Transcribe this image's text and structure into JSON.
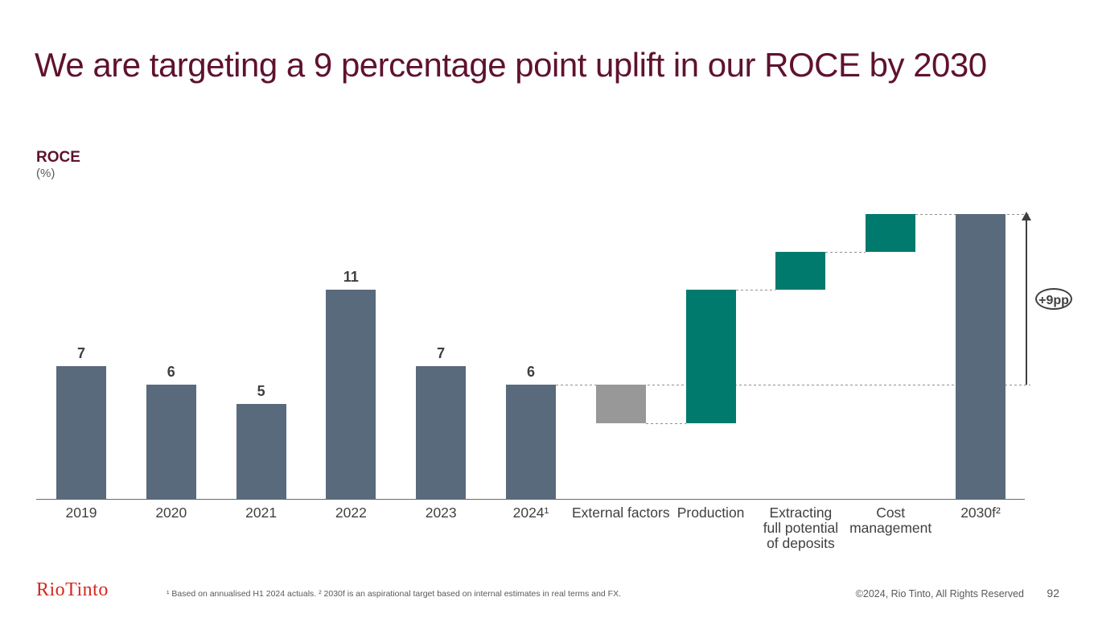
{
  "slide": {
    "title": "We are targeting a 9 percentage point uplift in our ROCE by 2030",
    "footer": {
      "logo_text": "RioTinto",
      "footnote": "¹ Based on annualised H1 2024 actuals. ² 2030f is an aspirational target based on internal estimates in real terms and FX.",
      "copyright": "©2024, Rio Tinto, All Rights Reserved",
      "page_number": "92"
    }
  },
  "chart": {
    "label": "ROCE",
    "unit_label": "(%)",
    "annotation_badge": "+9pp"
  },
  "chart_data": {
    "type": "bar",
    "subtype": "waterfall",
    "title": "ROCE",
    "ylabel": "(%)",
    "xlabel": "",
    "grid": false,
    "legend_position": "none",
    "ylim": [
      0,
      16
    ],
    "categories": [
      "2019",
      "2020",
      "2021",
      "2022",
      "2023",
      "2024¹",
      "External factors",
      "Production",
      "Extracting full potential of deposits",
      "Cost management",
      "2030f²"
    ],
    "categories_lines": [
      [
        "2019"
      ],
      [
        "2020"
      ],
      [
        "2021"
      ],
      [
        "2022"
      ],
      [
        "2023"
      ],
      [
        "2024¹"
      ],
      [
        "External factors"
      ],
      [
        "Production"
      ],
      [
        "Extracting",
        "full potential",
        "of deposits"
      ],
      [
        "Cost",
        "management"
      ],
      [
        "2030f²"
      ]
    ],
    "values": [
      7,
      6,
      5,
      11,
      7,
      6,
      -2,
      7,
      2,
      2,
      15
    ],
    "roles": [
      "total",
      "total",
      "total",
      "total",
      "total",
      "total",
      "decrease",
      "increase",
      "increase",
      "increase",
      "total"
    ],
    "running_totals": [
      7,
      6,
      5,
      11,
      7,
      6,
      4,
      11,
      13,
      15,
      15
    ],
    "data_labels": [
      "7",
      "6",
      "5",
      "11",
      "7",
      "6",
      "",
      "",
      "",
      "",
      ""
    ],
    "annotation": "+9pp",
    "annotation_meaning": "uplift from 6 in 2024 to 15 in 2030f",
    "colors": {
      "total": "#5A6A7D",
      "increase": "#007A6C",
      "decrease": "#989898"
    }
  },
  "colors": {
    "title_maroon": "#5F122F",
    "logo_red": "#D6281E",
    "text_dark": "#3F3F3F",
    "text_gray": "#595959",
    "axis_gray": "#6B6B6B"
  }
}
